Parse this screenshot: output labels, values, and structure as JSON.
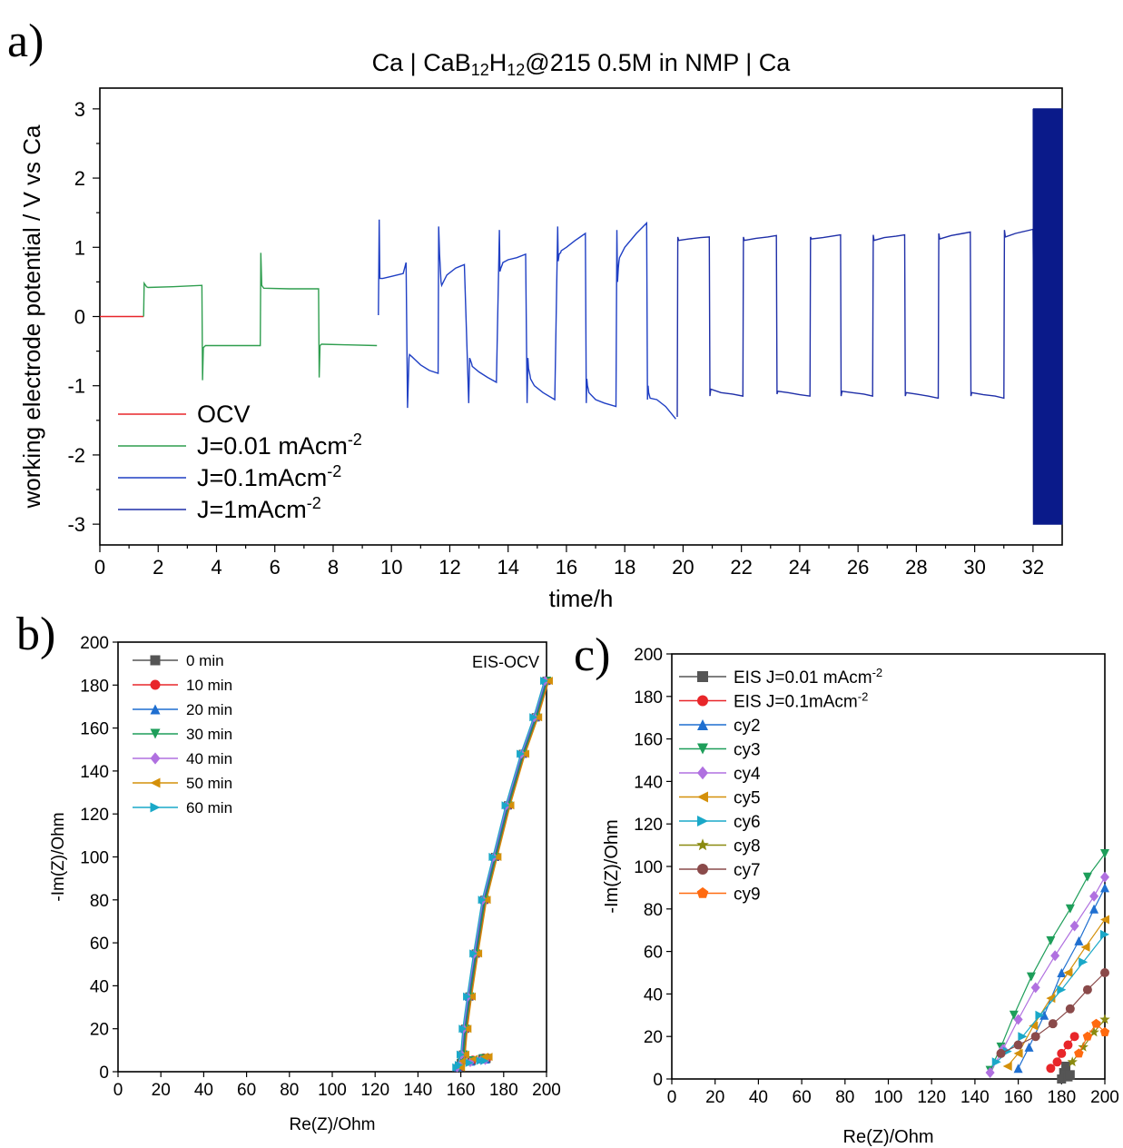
{
  "figure": {
    "panel_a_letter": "a)",
    "panel_b_letter": "b)",
    "panel_c_letter": "c)"
  },
  "chart_data": [
    {
      "panel": "a",
      "type": "line",
      "title": "Ca | CaB12H12@215 0.5M in NMP | Ca",
      "title_parts": [
        "Ca | CaB",
        "12",
        "H",
        "12",
        "@215 0.5M in NMP | Ca"
      ],
      "xlabel": "time/h",
      "ylabel": "working electrode potential / V vs Ca",
      "xlim": [
        0,
        33
      ],
      "ylim": [
        -3.3,
        3.3
      ],
      "xticks": [
        0,
        2,
        4,
        6,
        8,
        10,
        12,
        14,
        16,
        18,
        20,
        22,
        24,
        26,
        28,
        30,
        32
      ],
      "yticks": [
        -3,
        -2,
        -1,
        0,
        1,
        2,
        3
      ],
      "legend_position": "bottom-left",
      "legend": [
        {
          "label": "OCV",
          "color": "#e8262a",
          "sup": ""
        },
        {
          "label": "J=0.01 mAcm",
          "color": "#2f9e4f",
          "sup": "-2"
        },
        {
          "label": "J=0.1mAcm",
          "color": "#1f3fc4",
          "sup": "-2"
        },
        {
          "label": "J=1mAcm",
          "color": "#1f2fa8",
          "sup": "-2"
        }
      ],
      "series": [
        {
          "name": "OCV",
          "color": "#e8262a",
          "x": [
            0,
            1.5
          ],
          "y": [
            0,
            0
          ]
        },
        {
          "name": "J=0.01 mAcm-2",
          "color": "#2f9e4f",
          "x": [
            1.5,
            1.52,
            1.6,
            1.65,
            2.5,
            3.5,
            3.52,
            3.55,
            3.6,
            3.62,
            4.5,
            5.5,
            5.52,
            5.55,
            5.6,
            5.62,
            6.5,
            7.5,
            7.52,
            7.55,
            7.6,
            7.62,
            8.5,
            9.5
          ],
          "y": [
            0,
            0.48,
            0.43,
            0.42,
            0.43,
            0.45,
            -0.92,
            -0.45,
            -0.43,
            -0.42,
            -0.42,
            -0.42,
            0.92,
            0.45,
            0.42,
            0.41,
            0.4,
            0.4,
            -0.88,
            -0.42,
            -0.4,
            -0.4,
            -0.41,
            -0.42
          ]
        },
        {
          "name": "J=0.1mAcm-2",
          "color": "#1f3fc4",
          "x": [
            9.55,
            9.58,
            9.6,
            9.7,
            10.0,
            10.4,
            10.5,
            10.55,
            10.6,
            10.62,
            10.7,
            10.8,
            11.0,
            11.3,
            11.6,
            11.62,
            11.65,
            11.7,
            11.72,
            11.9,
            12.2,
            12.5,
            12.65,
            12.68,
            12.7,
            12.75,
            12.77,
            13.0,
            13.3,
            13.6,
            13.7,
            13.72,
            13.75,
            13.8,
            13.82,
            14.0,
            14.3,
            14.6,
            14.65,
            14.68,
            14.7,
            14.75,
            14.77,
            14.9,
            15.2,
            15.6,
            15.7,
            15.72,
            15.75,
            15.8,
            15.82,
            16.0,
            16.3,
            16.65,
            16.68,
            16.7,
            16.72,
            16.75,
            16.77,
            17.0,
            17.3,
            17.7,
            17.73,
            17.75,
            17.78,
            17.8,
            17.82,
            18.0,
            18.4,
            18.75,
            18.78,
            18.8,
            18.82,
            18.85,
            18.87,
            19.1,
            19.4,
            19.75
          ],
          "y": [
            0.02,
            1.4,
            0.55,
            0.55,
            0.58,
            0.62,
            0.78,
            -1.32,
            -0.6,
            -0.55,
            -0.58,
            -0.62,
            -0.7,
            -0.78,
            -0.82,
            1.3,
            0.9,
            0.5,
            0.45,
            0.6,
            0.7,
            0.75,
            -1.25,
            -0.6,
            -0.62,
            -0.68,
            -0.72,
            -0.8,
            -0.88,
            -0.95,
            1.25,
            0.65,
            0.7,
            0.75,
            0.78,
            0.82,
            0.85,
            0.9,
            -1.25,
            -0.6,
            -0.75,
            -0.85,
            -0.9,
            -1.0,
            -1.1,
            -1.2,
            1.3,
            0.8,
            0.9,
            0.92,
            0.95,
            1.0,
            1.1,
            1.2,
            -1.25,
            -0.9,
            -1.0,
            -1.05,
            -1.1,
            -1.2,
            -1.25,
            -1.3,
            1.25,
            0.5,
            0.7,
            0.8,
            0.85,
            1.0,
            1.2,
            1.35,
            -1.2,
            -1.0,
            -1.1,
            -1.15,
            -1.18,
            -1.2,
            -1.3,
            -1.48
          ]
        },
        {
          "name": "J=1mAcm-2",
          "color": "#1f2fa8",
          "x": [
            19.8,
            19.82,
            19.85,
            20.2,
            20.6,
            20.9,
            20.92,
            20.95,
            21.3,
            21.7,
            22.05,
            22.07,
            22.1,
            22.5,
            22.9,
            23.2,
            23.22,
            23.25,
            23.6,
            24.0,
            24.35,
            24.37,
            24.4,
            24.8,
            25.1,
            25.4,
            25.42,
            25.45,
            25.8,
            26.2,
            26.5,
            26.52,
            26.55,
            26.9,
            27.3,
            27.6,
            27.62,
            27.65,
            28.0,
            28.4,
            28.75,
            28.77,
            28.8,
            29.2,
            29.6,
            29.85,
            29.87,
            29.9,
            30.3,
            30.7,
            31.0,
            31.02,
            31.05,
            31.4,
            31.8,
            32.0,
            32.05
          ],
          "y": [
            -1.45,
            1.15,
            1.1,
            1.12,
            1.14,
            1.15,
            -1.15,
            -1.05,
            -1.1,
            -1.12,
            -1.15,
            1.15,
            1.1,
            1.13,
            1.15,
            1.17,
            -1.12,
            -1.08,
            -1.1,
            -1.13,
            -1.15,
            1.15,
            1.12,
            1.14,
            1.16,
            1.18,
            -1.15,
            -1.08,
            -1.1,
            -1.12,
            -1.15,
            1.18,
            1.1,
            1.14,
            1.16,
            1.18,
            -1.15,
            -1.1,
            -1.12,
            -1.15,
            -1.18,
            1.2,
            1.12,
            1.17,
            1.2,
            1.22,
            -1.15,
            -1.1,
            -1.13,
            -1.15,
            -1.18,
            1.25,
            1.15,
            1.2,
            1.24,
            1.26,
            -1.15
          ]
        },
        {
          "name": "J=1mAcm-2 block",
          "color": "#0a1a8a",
          "x": [
            32.0,
            32.1,
            32.2,
            32.3,
            32.4,
            32.5,
            32.6,
            32.7,
            32.8,
            32.9,
            33.0
          ],
          "y_high": 3.0,
          "y_low": -3.0
        }
      ]
    },
    {
      "panel": "b",
      "type": "scatter",
      "title": "EIS-OCV",
      "xlabel": "Re(Z)/Ohm",
      "ylabel": "-Im(Z)/Ohm",
      "xlim": [
        0,
        200
      ],
      "ylim": [
        0,
        200
      ],
      "xticks": [
        0,
        20,
        40,
        60,
        80,
        100,
        120,
        140,
        160,
        180,
        200
      ],
      "yticks": [
        0,
        20,
        40,
        60,
        80,
        100,
        120,
        140,
        160,
        180,
        200
      ],
      "legend_position": "top-left",
      "series": [
        {
          "name": "0 min",
          "color": "#555555",
          "marker": "square"
        },
        {
          "name": "10 min",
          "color": "#e8262a",
          "marker": "circle"
        },
        {
          "name": "20 min",
          "color": "#1f6fd0",
          "marker": "triangle-up"
        },
        {
          "name": "30 min",
          "color": "#1e9e5a",
          "marker": "triangle-down"
        },
        {
          "name": "40 min",
          "color": "#b070e0",
          "marker": "diamond"
        },
        {
          "name": "50 min",
          "color": "#d4900a",
          "marker": "triangle-left"
        },
        {
          "name": "60 min",
          "color": "#1aa8c8",
          "marker": "triangle-right"
        }
      ],
      "line_points": [
        [
          159,
          2
        ],
        [
          161,
          8
        ],
        [
          162,
          20
        ],
        [
          164,
          35
        ],
        [
          167,
          55
        ],
        [
          171,
          80
        ],
        [
          176,
          100
        ],
        [
          182,
          124
        ],
        [
          189,
          148
        ],
        [
          195,
          165
        ],
        [
          200,
          182
        ]
      ],
      "tail_points": [
        [
          160,
          4
        ],
        [
          165,
          5
        ],
        [
          170,
          6
        ],
        [
          172,
          6
        ]
      ]
    },
    {
      "panel": "c",
      "type": "scatter",
      "title": "",
      "xlabel": "Re(Z)/Ohm",
      "ylabel": "-Im(Z)/Ohm",
      "xlim": [
        0,
        200
      ],
      "ylim": [
        0,
        200
      ],
      "xticks": [
        0,
        20,
        40,
        60,
        80,
        100,
        120,
        140,
        160,
        180,
        200
      ],
      "yticks": [
        0,
        20,
        40,
        60,
        80,
        100,
        120,
        140,
        160,
        180,
        200
      ],
      "legend_position": "top-left",
      "series": [
        {
          "name": "EIS J=0.01 mAcm",
          "sup": "-2",
          "color": "#555555",
          "marker": "square",
          "points": [
            [
              180,
              0
            ],
            [
              181,
              3
            ],
            [
              182,
              6
            ],
            [
              183,
              1
            ],
            [
              184,
              2
            ]
          ]
        },
        {
          "name": "EIS J=0.1mAcm",
          "sup": "-2",
          "color": "#e8262a",
          "marker": "circle",
          "points": [
            [
              175,
              5
            ],
            [
              178,
              8
            ],
            [
              180,
              12
            ],
            [
              183,
              16
            ],
            [
              186,
              20
            ]
          ]
        },
        {
          "name": "cy2",
          "sup": "",
          "color": "#1f6fd0",
          "marker": "triangle-up",
          "points": [
            [
              160,
              5
            ],
            [
              165,
              15
            ],
            [
              172,
              30
            ],
            [
              180,
              50
            ],
            [
              188,
              65
            ],
            [
              195,
              80
            ],
            [
              200,
              90
            ]
          ]
        },
        {
          "name": "cy3",
          "sup": "",
          "color": "#1e9e5a",
          "marker": "triangle-down",
          "points": [
            [
              147,
              4
            ],
            [
              152,
              15
            ],
            [
              158,
              30
            ],
            [
              166,
              48
            ],
            [
              175,
              65
            ],
            [
              184,
              80
            ],
            [
              192,
              95
            ],
            [
              200,
              106
            ]
          ]
        },
        {
          "name": "cy4",
          "sup": "",
          "color": "#b070e0",
          "marker": "diamond",
          "points": [
            [
              147,
              3
            ],
            [
              153,
              14
            ],
            [
              160,
              28
            ],
            [
              168,
              43
            ],
            [
              177,
              58
            ],
            [
              186,
              72
            ],
            [
              195,
              86
            ],
            [
              200,
              95
            ]
          ]
        },
        {
          "name": "cy5",
          "sup": "",
          "color": "#d4900a",
          "marker": "triangle-left",
          "points": [
            [
              155,
              6
            ],
            [
              160,
              12
            ],
            [
              167,
              25
            ],
            [
              175,
              38
            ],
            [
              183,
              50
            ],
            [
              191,
              62
            ],
            [
              200,
              75
            ]
          ]
        },
        {
          "name": "cy6",
          "sup": "",
          "color": "#1aa8c8",
          "marker": "triangle-right",
          "points": [
            [
              150,
              8
            ],
            [
              155,
              13
            ],
            [
              162,
              20
            ],
            [
              170,
              30
            ],
            [
              180,
              42
            ],
            [
              190,
              55
            ],
            [
              200,
              68
            ]
          ]
        },
        {
          "name": "cy8",
          "sup": "",
          "color": "#8a8a10",
          "marker": "star",
          "points": [
            [
              185,
              8
            ],
            [
              190,
              15
            ],
            [
              195,
              22
            ],
            [
              200,
              28
            ]
          ]
        },
        {
          "name": "cy7",
          "sup": "",
          "color": "#8a4a4a",
          "marker": "circle",
          "points": [
            [
              152,
              12
            ],
            [
              160,
              16
            ],
            [
              168,
              20
            ],
            [
              176,
              26
            ],
            [
              184,
              33
            ],
            [
              192,
              42
            ],
            [
              200,
              50
            ]
          ]
        },
        {
          "name": "cy9",
          "sup": "",
          "color": "#ff6a10",
          "marker": "pentagon",
          "points": [
            [
              188,
              12
            ],
            [
              192,
              20
            ],
            [
              196,
              26
            ],
            [
              200,
              22
            ]
          ]
        }
      ]
    }
  ]
}
